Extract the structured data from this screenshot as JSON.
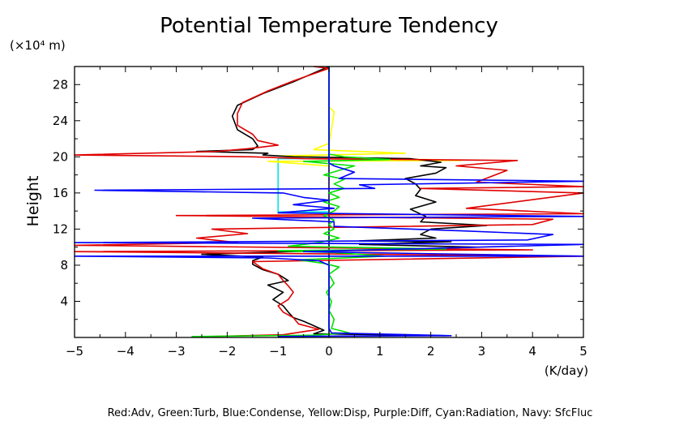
{
  "chart_data": {
    "type": "line",
    "title": "Potential Temperature Tendency",
    "ylabel": "Height",
    "yunit": "(×10⁴ m)",
    "xunit": "(K/day)",
    "xlim": [
      -5,
      5
    ],
    "ylim": [
      0,
      30
    ],
    "xticks": [
      -5,
      -4,
      -3,
      -2,
      -1,
      0,
      1,
      2,
      3,
      4,
      5
    ],
    "yticks": [
      4,
      8,
      12,
      16,
      20,
      24,
      28
    ],
    "caption": "Red:Adv, Green:Turb, Blue:Condense, Yellow:Disp, Purple:Diff, Cyan:Radiation, Navy: SfcFluc",
    "grid": false,
    "series": [
      {
        "key": "radiation",
        "color": "#00e5e5",
        "points": [
          [
            0,
            0
          ],
          [
            0,
            13.9
          ],
          [
            -1,
            13.9
          ],
          [
            -1,
            19.8
          ],
          [
            0,
            19.8
          ],
          [
            0,
            30
          ]
        ]
      },
      {
        "key": "disp",
        "color": "#ffff00",
        "points": [
          [
            0,
            0
          ],
          [
            0,
            19
          ],
          [
            -1.2,
            19.5
          ],
          [
            2.6,
            19.6
          ],
          [
            -1.0,
            20.1
          ],
          [
            1.5,
            20.4
          ],
          [
            -0.3,
            20.8
          ],
          [
            0,
            21.5
          ],
          [
            0.05,
            23
          ],
          [
            0.1,
            25
          ],
          [
            0,
            25.5
          ],
          [
            0,
            30
          ]
        ]
      },
      {
        "key": "sfcfluc",
        "color": "#000080",
        "points": [
          [
            0,
            0
          ],
          [
            0,
            30
          ]
        ]
      },
      {
        "key": "black",
        "color": "#000000",
        "points": [
          [
            2.3,
            0.2
          ],
          [
            -0.3,
            0.4
          ],
          [
            -0.1,
            0.8
          ],
          [
            -0.3,
            1.3
          ],
          [
            -0.5,
            1.8
          ],
          [
            -0.7,
            2.2
          ],
          [
            -0.8,
            2.8
          ],
          [
            -0.9,
            3.5
          ],
          [
            -1.1,
            4.2
          ],
          [
            -0.9,
            5
          ],
          [
            -1.2,
            5.8
          ],
          [
            -0.8,
            6.3
          ],
          [
            -1.0,
            7
          ],
          [
            -1.3,
            7.5
          ],
          [
            -1.5,
            8.1
          ],
          [
            -1.5,
            8.5
          ],
          [
            -1.3,
            8.9
          ],
          [
            -2.5,
            9.2
          ],
          [
            -0.8,
            9.5
          ],
          [
            1.2,
            9.7
          ],
          [
            2.9,
            10.0
          ],
          [
            0.6,
            10.3
          ],
          [
            2.4,
            10.6
          ],
          [
            0.6,
            10.7
          ],
          [
            2.1,
            11.0
          ],
          [
            1.8,
            11.4
          ],
          [
            2.0,
            12.0
          ],
          [
            3.1,
            12.4
          ],
          [
            1.8,
            12.8
          ],
          [
            1.9,
            13.4
          ],
          [
            1.6,
            14.2
          ],
          [
            2.1,
            15.0
          ],
          [
            1.7,
            15.7
          ],
          [
            1.8,
            16.4
          ],
          [
            1.7,
            17.0
          ],
          [
            1.5,
            17.6
          ],
          [
            2.1,
            18.2
          ],
          [
            2.3,
            18.8
          ],
          [
            1.8,
            19.0
          ],
          [
            2.2,
            19.4
          ],
          [
            1.6,
            19.8
          ],
          [
            -0.7,
            20.0
          ],
          [
            -1.3,
            20.2
          ],
          [
            -1.2,
            20.4
          ],
          [
            -2.6,
            20.6
          ],
          [
            -1.5,
            20.8
          ],
          [
            -1.4,
            21.2
          ],
          [
            -1.5,
            22
          ],
          [
            -1.8,
            23
          ],
          [
            -1.9,
            24.5
          ],
          [
            -1.8,
            25.7
          ],
          [
            -1.3,
            27
          ],
          [
            -0.7,
            28.3
          ],
          [
            0,
            30
          ]
        ]
      },
      {
        "key": "adv",
        "color": "#e00000",
        "points": [
          [
            -2.7,
            0.05
          ],
          [
            -0.9,
            0.3
          ],
          [
            -0.2,
            0.9
          ],
          [
            -0.6,
            1.5
          ],
          [
            -0.7,
            2.2
          ],
          [
            -0.9,
            2.8
          ],
          [
            -1.0,
            3.5
          ],
          [
            -0.8,
            4.2
          ],
          [
            -0.7,
            5
          ],
          [
            -0.8,
            5.7
          ],
          [
            -0.9,
            6.3
          ],
          [
            -1.0,
            7.0
          ],
          [
            -1.3,
            7.6
          ],
          [
            -1.5,
            8.4
          ],
          [
            5,
            9.0
          ],
          [
            -5,
            9.5
          ],
          [
            4,
            9.7
          ],
          [
            -5,
            10.2
          ],
          [
            -1.8,
            10.5
          ],
          [
            -2.6,
            11.0
          ],
          [
            -1.6,
            11.5
          ],
          [
            -2.3,
            12.0
          ],
          [
            4,
            12.5
          ],
          [
            4.4,
            13.1
          ],
          [
            -3.0,
            13.5
          ],
          [
            5,
            13.7
          ],
          [
            2.7,
            14.3
          ],
          [
            5,
            16.0
          ],
          [
            1.8,
            16.5
          ],
          [
            5,
            16.7
          ],
          [
            2.9,
            17.2
          ],
          [
            3.5,
            18.5
          ],
          [
            2.5,
            19.0
          ],
          [
            3.7,
            19.6
          ],
          [
            -0.5,
            19.8
          ],
          [
            -1.5,
            20.0
          ],
          [
            -5,
            20.2
          ],
          [
            -2.2,
            20.6
          ],
          [
            -1.6,
            20.9
          ],
          [
            -1.0,
            21.3
          ],
          [
            -1.4,
            21.8
          ],
          [
            -1.5,
            22.5
          ],
          [
            -1.8,
            23.5
          ],
          [
            -1.8,
            24.8
          ],
          [
            -1.7,
            26
          ],
          [
            -1.2,
            27.3
          ],
          [
            -0.7,
            28.4
          ],
          [
            0,
            29.8
          ],
          [
            -0.3,
            30
          ]
        ]
      },
      {
        "key": "turb",
        "color": "#00e000",
        "points": [
          [
            -2.7,
            0.1
          ],
          [
            -0.3,
            0.25
          ],
          [
            0.4,
            0.5
          ],
          [
            0.05,
            1
          ],
          [
            0.1,
            2
          ],
          [
            0.0,
            3
          ],
          [
            0.05,
            4
          ],
          [
            -0.05,
            5
          ],
          [
            0.1,
            6
          ],
          [
            0.0,
            7
          ],
          [
            0.2,
            7.8
          ],
          [
            -0.1,
            8.2
          ],
          [
            -0.6,
            8.6
          ],
          [
            1.1,
            9.0
          ],
          [
            0.1,
            9.4
          ],
          [
            -1.0,
            9.6
          ],
          [
            2.3,
            9.8
          ],
          [
            -0.8,
            10.1
          ],
          [
            -0.2,
            10.5
          ],
          [
            0.2,
            11
          ],
          [
            -0.1,
            11.5
          ],
          [
            0.1,
            12
          ],
          [
            0.0,
            12.5
          ],
          [
            0.1,
            13
          ],
          [
            -0.1,
            13.5
          ],
          [
            0.1,
            14
          ],
          [
            0.2,
            14.5
          ],
          [
            -0.1,
            15
          ],
          [
            0.2,
            15.5
          ],
          [
            0.0,
            16
          ],
          [
            0.3,
            16.5
          ],
          [
            0.1,
            17
          ],
          [
            0.3,
            17.5
          ],
          [
            -0.1,
            18
          ],
          [
            0.2,
            18.5
          ],
          [
            0.5,
            19
          ],
          [
            -0.5,
            19.5
          ],
          [
            1.2,
            19.7
          ],
          [
            0.3,
            20.0
          ],
          [
            0,
            20.3
          ],
          [
            0,
            30
          ]
        ]
      },
      {
        "key": "condense",
        "color": "#0000ff",
        "points": [
          [
            -1.0,
            0.1
          ],
          [
            0.2,
            0.15
          ],
          [
            2.4,
            0.2
          ],
          [
            0.05,
            0.5
          ],
          [
            0.0,
            1
          ],
          [
            0.0,
            8.0
          ],
          [
            -0.2,
            8.5
          ],
          [
            -1.2,
            8.8
          ],
          [
            -5,
            9.0
          ],
          [
            5,
            9.0
          ],
          [
            -0.5,
            9.5
          ],
          [
            5,
            10.3
          ],
          [
            -5,
            10.5
          ],
          [
            3.9,
            10.8
          ],
          [
            4.4,
            11.4
          ],
          [
            2.6,
            11.8
          ],
          [
            0.1,
            12.3
          ],
          [
            0.1,
            12.8
          ],
          [
            -1.5,
            13.2
          ],
          [
            5,
            13.4
          ],
          [
            -1.0,
            13.8
          ],
          [
            0.1,
            14.3
          ],
          [
            -0.7,
            14.7
          ],
          [
            0.0,
            15.2
          ],
          [
            -0.5,
            15.5
          ],
          [
            -0.9,
            16.0
          ],
          [
            -4.6,
            16.3
          ],
          [
            0.9,
            16.5
          ],
          [
            0.6,
            16.9
          ],
          [
            5,
            17.3
          ],
          [
            0.2,
            17.6
          ],
          [
            0.5,
            18.3
          ],
          [
            0.1,
            19.0
          ],
          [
            0.0,
            19.3
          ],
          [
            0,
            30
          ]
        ]
      }
    ]
  }
}
